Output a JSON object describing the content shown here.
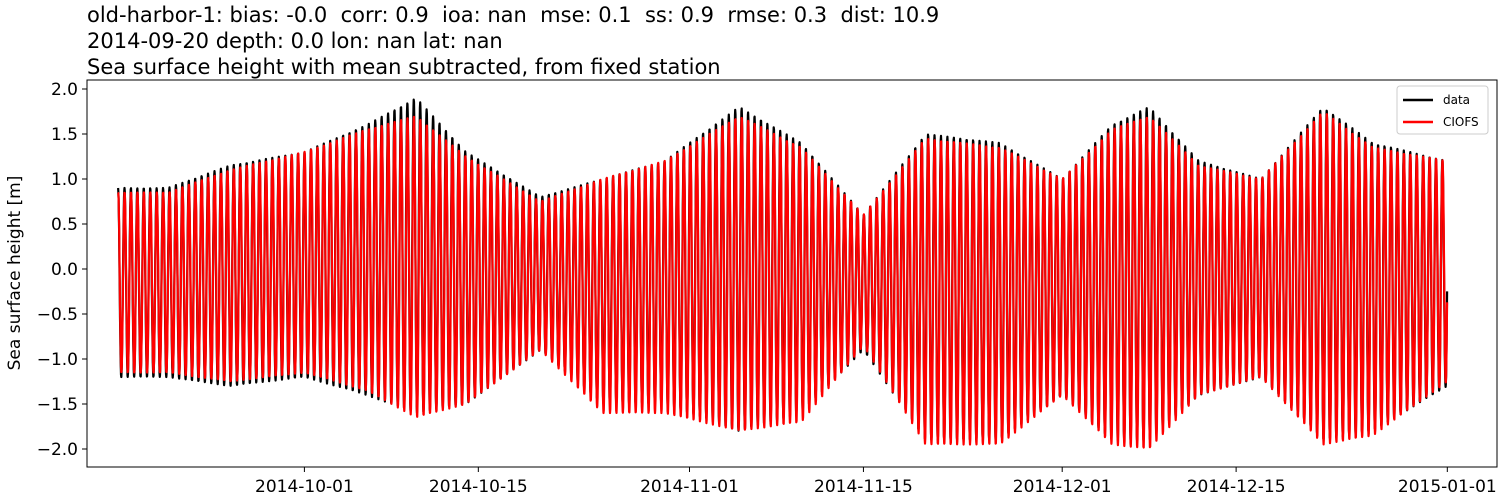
{
  "chart_data": {
    "type": "line",
    "title_lines": [
      "old-harbor-1: bias: -0.0  corr: 0.9  ioa: nan  mse: 0.1  ss: 0.9  rmse: 0.3  dist: 10.9",
      "2014-09-20 depth: 0.0 lon: nan lat: nan",
      "Sea surface height with mean subtracted, from fixed station"
    ],
    "xlabel": "",
    "ylabel": "Sea surface height [m]",
    "xlim": [
      "2014-09-20",
      "2015-01-01"
    ],
    "ylim": [
      -2.2,
      2.1
    ],
    "x_ticks": [
      "2014-10-01",
      "2014-10-15",
      "2014-11-01",
      "2014-11-15",
      "2014-12-01",
      "2014-12-15",
      "2015-01-01"
    ],
    "y_ticks": [
      2.0,
      1.5,
      1.0,
      0.5,
      0.0,
      -0.5,
      -1.0,
      -1.5,
      -2.0
    ],
    "y_tick_labels": [
      "2.0",
      "1.5",
      "1.0",
      "0.5",
      "0.0",
      "−0.5",
      "−1.0",
      "−1.5",
      "−2.0"
    ],
    "grid": false,
    "legend_position": "top-right",
    "series": [
      {
        "name": "data",
        "color": "#000000",
        "envelope": {
          "dates": [
            "2014-09-20",
            "2014-09-25",
            "2014-10-01",
            "2014-10-06",
            "2014-10-10",
            "2014-10-14",
            "2014-10-20",
            "2014-10-25",
            "2014-10-30",
            "2014-11-05",
            "2014-11-10",
            "2014-11-15",
            "2014-11-20",
            "2014-11-26",
            "2014-12-01",
            "2014-12-05",
            "2014-12-08",
            "2014-12-12",
            "2014-12-17",
            "2014-12-22",
            "2014-12-26",
            "2015-01-01"
          ],
          "high": [
            0.9,
            1.15,
            1.3,
            1.6,
            1.9,
            1.3,
            0.8,
            1.0,
            1.2,
            1.8,
            1.4,
            0.6,
            1.5,
            1.4,
            1.0,
            1.6,
            1.8,
            1.2,
            1.0,
            1.8,
            1.4,
            1.2
          ],
          "low": [
            -1.2,
            -1.3,
            -1.2,
            -1.4,
            -1.6,
            -1.5,
            -0.9,
            -1.5,
            -1.5,
            -1.8,
            -1.6,
            -0.9,
            -1.9,
            -1.9,
            -1.4,
            -1.9,
            -1.9,
            -1.4,
            -1.2,
            -1.9,
            -1.8,
            -1.3
          ]
        }
      },
      {
        "name": "CIOFS",
        "color": "#ff0000",
        "envelope": {
          "dates": [
            "2014-09-20",
            "2014-09-25",
            "2014-10-01",
            "2014-10-06",
            "2014-10-10",
            "2014-10-14",
            "2014-10-20",
            "2014-10-25",
            "2014-10-30",
            "2014-11-05",
            "2014-11-10",
            "2014-11-15",
            "2014-11-20",
            "2014-11-26",
            "2014-12-01",
            "2014-12-05",
            "2014-12-08",
            "2014-12-12",
            "2014-12-17",
            "2014-12-22",
            "2014-12-26",
            "2015-01-01"
          ],
          "high": [
            0.85,
            1.1,
            1.3,
            1.55,
            1.7,
            1.25,
            0.75,
            1.0,
            1.2,
            1.7,
            1.35,
            0.6,
            1.45,
            1.35,
            1.0,
            1.55,
            1.7,
            1.15,
            1.0,
            1.75,
            1.35,
            1.2
          ],
          "low": [
            -1.15,
            -1.25,
            -1.15,
            -1.35,
            -1.65,
            -1.5,
            -0.9,
            -1.6,
            -1.6,
            -1.8,
            -1.7,
            -0.85,
            -1.95,
            -1.95,
            -1.4,
            -1.95,
            -2.0,
            -1.4,
            -1.2,
            -1.95,
            -1.85,
            -1.25
          ]
        }
      }
    ]
  }
}
